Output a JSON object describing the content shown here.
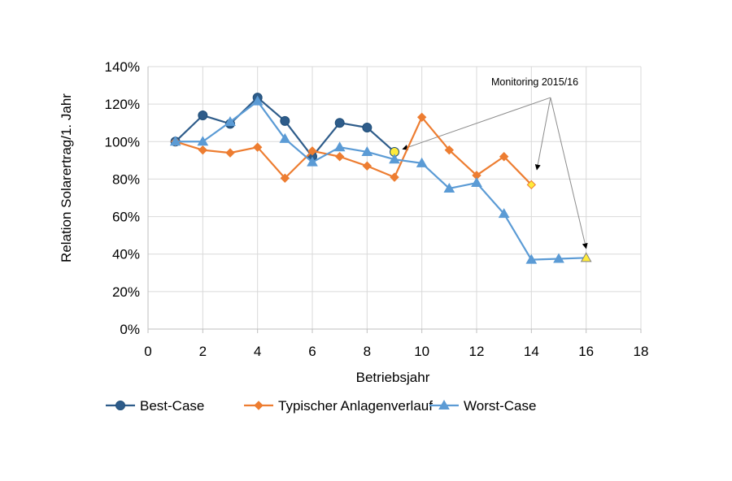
{
  "chart_data": {
    "type": "line",
    "title": "",
    "xlabel": "Betriebsjahr",
    "ylabel": "Relation Solarertrag/1. Jahr",
    "xlim": [
      0,
      18
    ],
    "ylim": [
      0,
      140
    ],
    "x_ticks": [
      "0",
      "2",
      "4",
      "6",
      "8",
      "10",
      "12",
      "14",
      "16",
      "18"
    ],
    "y_ticks": [
      "0%",
      "20%",
      "40%",
      "60%",
      "80%",
      "100%",
      "120%",
      "140%"
    ],
    "grid": true,
    "legend": "bottom",
    "series": [
      {
        "name": "Best-Case",
        "marker": "circle",
        "color": "#2E5C8A",
        "points": [
          [
            1,
            100
          ],
          [
            2,
            114
          ],
          [
            3,
            109.5
          ],
          [
            4,
            123.5
          ],
          [
            5,
            111
          ],
          [
            6,
            92
          ],
          [
            7,
            110
          ],
          [
            8,
            107.5
          ],
          [
            9,
            94.5
          ]
        ],
        "highlight_last": true,
        "highlight_color": "#FFEB3B"
      },
      {
        "name": "Typischer Anlagenverlauf",
        "marker": "diamond",
        "color": "#ED7D31",
        "points": [
          [
            1,
            100
          ],
          [
            2,
            95.5
          ],
          [
            3,
            94
          ],
          [
            4,
            97
          ],
          [
            5,
            80.5
          ],
          [
            6,
            95
          ],
          [
            7,
            92
          ],
          [
            8,
            87
          ],
          [
            9,
            81
          ],
          [
            10,
            113
          ],
          [
            11,
            95.5
          ],
          [
            12,
            82
          ],
          [
            13,
            92
          ],
          [
            14,
            77
          ]
        ],
        "highlight_last": true,
        "highlight_color": "#FFEB3B"
      },
      {
        "name": "Worst-Case",
        "marker": "triangle",
        "color": "#5B9BD5",
        "points": [
          [
            1,
            100
          ],
          [
            2,
            100
          ],
          [
            3,
            110.5
          ],
          [
            4,
            121.5
          ],
          [
            5,
            101.5
          ],
          [
            6,
            89
          ],
          [
            7,
            97
          ],
          [
            8,
            94.5
          ],
          [
            9,
            90.5
          ],
          [
            10,
            88.5
          ],
          [
            11,
            75
          ],
          [
            12,
            78
          ],
          [
            13,
            61.5
          ],
          [
            14,
            37
          ],
          [
            15,
            37.5
          ],
          [
            16,
            38
          ]
        ],
        "highlight_last": true,
        "highlight_color": "#FFEB3B"
      }
    ],
    "annotation": {
      "text": "Monitoring 2015/16",
      "origin": [
        14.7,
        123.5
      ],
      "targets": [
        [
          9.3,
          96
        ],
        [
          14.2,
          85
        ],
        [
          16,
          43
        ]
      ]
    }
  }
}
